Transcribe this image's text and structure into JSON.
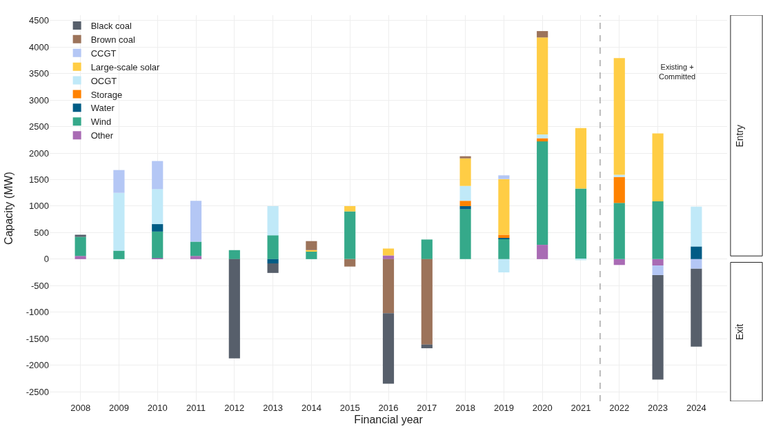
{
  "chart_data": {
    "type": "bar",
    "stacked": true,
    "xlabel": "Financial year",
    "ylabel": "Capacity (MW)",
    "x": [
      2008,
      2009,
      2010,
      2011,
      2012,
      2013,
      2014,
      2015,
      2016,
      2017,
      2018,
      2019,
      2020,
      2021,
      2022,
      2023,
      2024
    ],
    "xlim": [
      2007.2,
      2024.8
    ],
    "xticks": [
      2008,
      2009,
      2010,
      2011,
      2012,
      2013,
      2014,
      2015,
      2016,
      2017,
      2018,
      2019,
      2020,
      2021,
      2022,
      2023,
      2024
    ],
    "ylim": [
      -2680,
      4600
    ],
    "yticks": [
      -2500,
      -2000,
      -1500,
      -1000,
      -500,
      0,
      500,
      1000,
      1500,
      2000,
      2500,
      3000,
      3500,
      4000,
      4500
    ],
    "grid": true,
    "legend": "top left",
    "series": [
      {
        "name": "Other",
        "color": "#a96bb4",
        "values": [
          60,
          null,
          20,
          60,
          null,
          null,
          null,
          null,
          70,
          null,
          null,
          null,
          270,
          null,
          -110,
          -120,
          null
        ]
      },
      {
        "name": "Wind",
        "color": "#35a98a",
        "values": [
          360,
          160,
          500,
          270,
          170,
          450,
          150,
          900,
          null,
          370,
          940,
          380,
          1950,
          1330,
          1060,
          1090,
          null
        ]
      },
      {
        "name": "Water",
        "color": "#005c85",
        "values": [
          null,
          null,
          140,
          null,
          null,
          -80,
          null,
          null,
          null,
          null,
          60,
          20,
          null,
          null,
          null,
          null,
          240
        ]
      },
      {
        "name": "Storage",
        "color": "#ff8200",
        "values": [
          null,
          null,
          null,
          null,
          null,
          null,
          null,
          null,
          null,
          null,
          100,
          60,
          60,
          null,
          490,
          null,
          null
        ]
      },
      {
        "name": "OCGT",
        "color": "#c0e9f8",
        "values": [
          null,
          1090,
          660,
          null,
          null,
          550,
          null,
          null,
          null,
          null,
          280,
          -250,
          70,
          -20,
          40,
          null,
          750
        ]
      },
      {
        "name": "Large-scale solar",
        "color": "#ffcd45",
        "values": [
          null,
          null,
          null,
          null,
          null,
          null,
          20,
          100,
          130,
          null,
          520,
          1050,
          1830,
          1140,
          2200,
          1280,
          null
        ]
      },
      {
        "name": "CCGT",
        "color": "#b4c7f5",
        "values": [
          null,
          430,
          530,
          770,
          null,
          null,
          null,
          null,
          null,
          null,
          null,
          70,
          null,
          null,
          null,
          -180,
          -180
        ]
      },
      {
        "name": "Brown coal",
        "color": "#9c735a",
        "values": [
          null,
          null,
          null,
          null,
          null,
          null,
          170,
          -140,
          -1020,
          -1610,
          40,
          null,
          120,
          null,
          null,
          null,
          null
        ]
      },
      {
        "name": "Black coal",
        "color": "#575f6b",
        "values": [
          40,
          null,
          null,
          null,
          -1870,
          -180,
          null,
          null,
          -1330,
          -70,
          null,
          null,
          null,
          null,
          null,
          -1970,
          -1470
        ]
      }
    ],
    "ref_lines": [
      {
        "axis": "x",
        "value": 2021.5,
        "color": "#a6a6a6",
        "line_style": "dashed"
      }
    ],
    "annotations": [
      "Existing +\nCommitted",
      "Entry",
      "Exit"
    ]
  }
}
